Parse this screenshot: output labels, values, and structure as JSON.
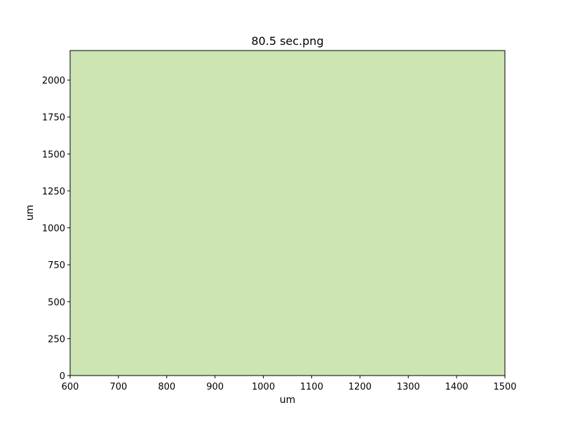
{
  "chart_data": {
    "type": "heatmap",
    "title": "80.5 sec.png",
    "xlabel": "um",
    "ylabel": "um",
    "xlim": [
      600,
      1500
    ],
    "ylim": [
      0,
      2200
    ],
    "x_ticks": [
      600,
      700,
      800,
      900,
      1000,
      1100,
      1200,
      1300,
      1400,
      1500
    ],
    "y_ticks": [
      0,
      250,
      500,
      750,
      1000,
      1250,
      1500,
      1750,
      2000
    ],
    "fill_color": "#cce5b2",
    "grid": false,
    "legend": "none"
  }
}
